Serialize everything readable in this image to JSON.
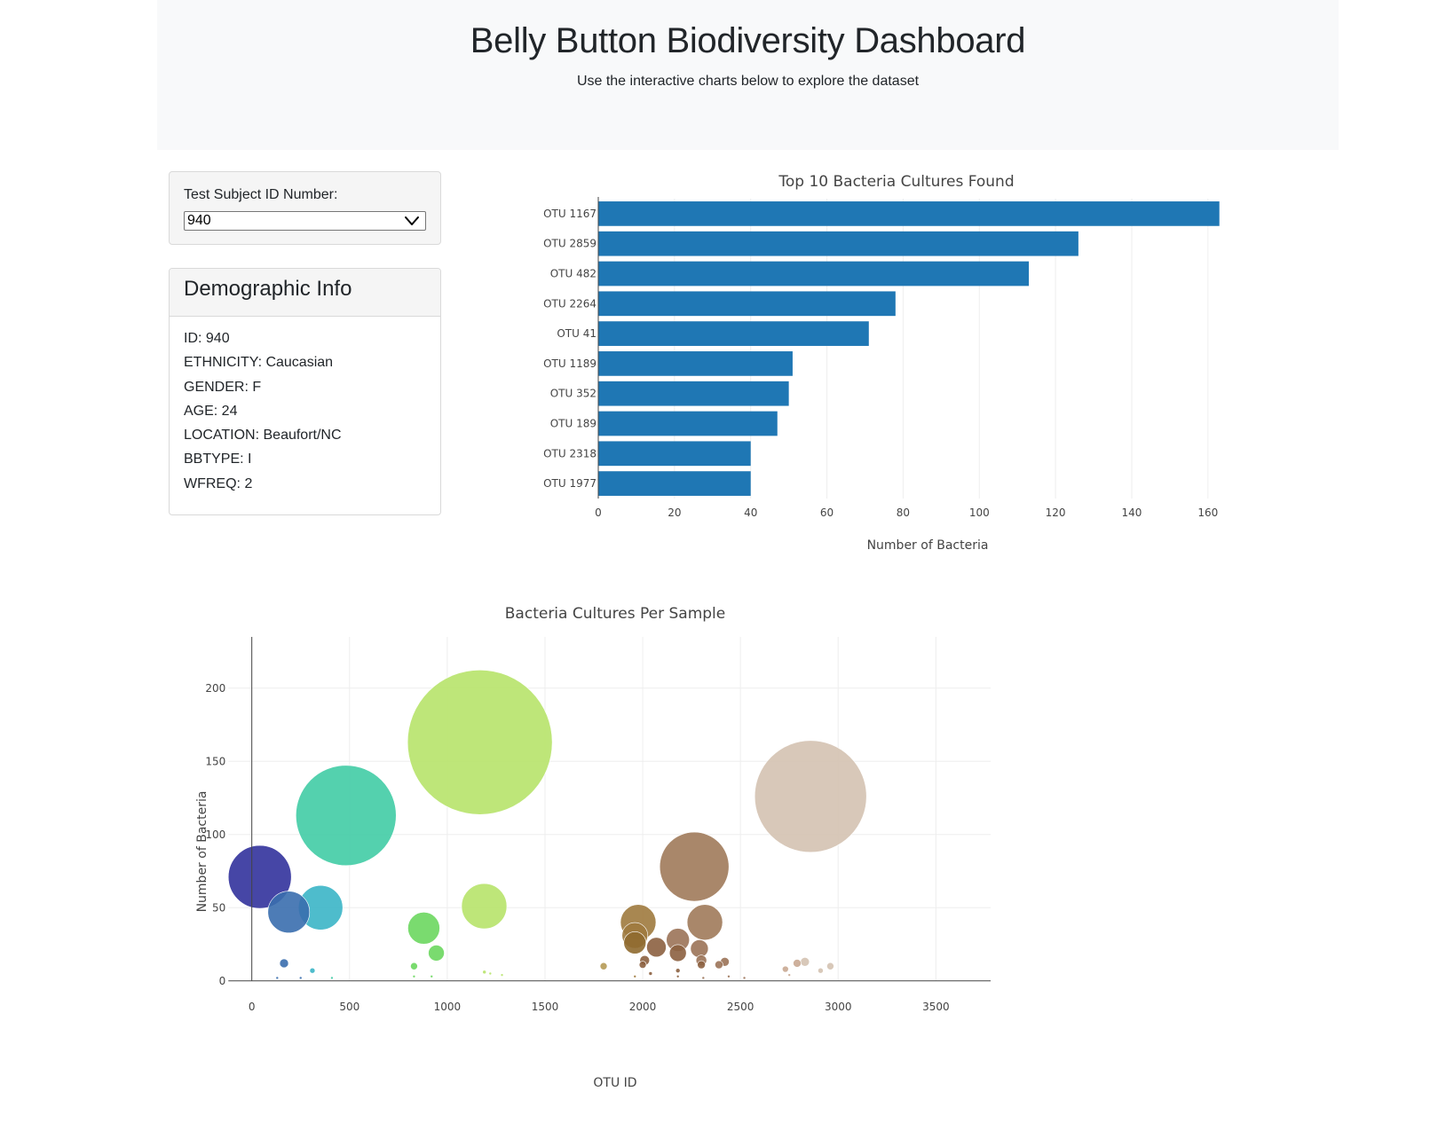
{
  "header": {
    "title": "Belly Button Biodiversity Dashboard",
    "subtitle": "Use the interactive charts below to explore the dataset"
  },
  "selector": {
    "label": "Test Subject ID Number:",
    "value": "940"
  },
  "demographics": {
    "title": "Demographic Info",
    "lines": [
      "ID: 940",
      "ETHNICITY: Caucasian",
      "GENDER: F",
      "AGE: 24",
      "LOCATION: Beaufort/NC",
      "BBTYPE: I",
      "WFREQ: 2"
    ]
  },
  "colors": {
    "bar": "#1f77b4",
    "axis": "#444444",
    "grid": "#eeeeee",
    "jumbotron_bg": "#f8f9fa"
  },
  "chart_data": [
    {
      "type": "bar",
      "orientation": "horizontal",
      "title": "Top 10 Bacteria Cultures Found",
      "xlabel": "Number of Bacteria",
      "ylabel": "",
      "categories": [
        "OTU 1167",
        "OTU 2859",
        "OTU 482",
        "OTU 2264",
        "OTU 41",
        "OTU 1189",
        "OTU 352",
        "OTU 189",
        "OTU 2318",
        "OTU 1977"
      ],
      "values": [
        163,
        126,
        113,
        78,
        71,
        51,
        50,
        47,
        40,
        40
      ],
      "xlim": [
        0,
        164
      ],
      "xticks": [
        0,
        20,
        40,
        60,
        80,
        100,
        120,
        140,
        160
      ],
      "grid": true,
      "legend": "none"
    },
    {
      "type": "scatter",
      "subtype": "bubble",
      "title": "Bacteria Cultures Per Sample",
      "xlabel": "OTU ID",
      "ylabel": "Number of Bacteria",
      "xlim": [
        -380,
        3780
      ],
      "ylim": [
        -5,
        235
      ],
      "xticks": [
        0,
        500,
        1000,
        1500,
        2000,
        2500,
        3000,
        3500
      ],
      "yticks": [
        0,
        50,
        100,
        150,
        200
      ],
      "grid": true,
      "legend": "none",
      "points": [
        {
          "x": 1167,
          "y": 163,
          "size": 163,
          "color": "#b7e36a"
        },
        {
          "x": 2859,
          "y": 126,
          "size": 126,
          "color": "#d4c2b1"
        },
        {
          "x": 482,
          "y": 113,
          "size": 113,
          "color": "#41cca5"
        },
        {
          "x": 2264,
          "y": 78,
          "size": 78,
          "color": "#a07a5a"
        },
        {
          "x": 41,
          "y": 71,
          "size": 71,
          "color": "#32329c"
        },
        {
          "x": 1189,
          "y": 51,
          "size": 51,
          "color": "#b7e36a"
        },
        {
          "x": 352,
          "y": 50,
          "size": 50,
          "color": "#3bb5c6"
        },
        {
          "x": 189,
          "y": 47,
          "size": 47,
          "color": "#3a6eae"
        },
        {
          "x": 2318,
          "y": 40,
          "size": 40,
          "color": "#a07a5a"
        },
        {
          "x": 1977,
          "y": 40,
          "size": 40,
          "color": "#9e7a3e"
        },
        {
          "x": 880,
          "y": 36,
          "size": 36,
          "color": "#6bd75f"
        },
        {
          "x": 1960,
          "y": 31,
          "size": 29,
          "color": "#9e7a3e"
        },
        {
          "x": 2180,
          "y": 28,
          "size": 26,
          "color": "#9b7358"
        },
        {
          "x": 1960,
          "y": 26,
          "size": 25,
          "color": "#8f6a2f"
        },
        {
          "x": 2070,
          "y": 23,
          "size": 22,
          "color": "#8c6040"
        },
        {
          "x": 2290,
          "y": 22,
          "size": 20,
          "color": "#9b7358"
        },
        {
          "x": 2180,
          "y": 19,
          "size": 19,
          "color": "#8c6040"
        },
        {
          "x": 944,
          "y": 19,
          "size": 18,
          "color": "#6bd75f"
        },
        {
          "x": 2300,
          "y": 14,
          "size": 12,
          "color": "#9b7358"
        },
        {
          "x": 2010,
          "y": 14,
          "size": 11,
          "color": "#8c6040"
        },
        {
          "x": 2420,
          "y": 13,
          "size": 10,
          "color": "#9b7358"
        },
        {
          "x": 2830,
          "y": 13,
          "size": 10,
          "color": "#d4c2b1"
        },
        {
          "x": 2300,
          "y": 11,
          "size": 9,
          "color": "#8c6040"
        },
        {
          "x": 2790,
          "y": 12,
          "size": 9,
          "color": "#c9a992"
        },
        {
          "x": 2390,
          "y": 11,
          "size": 9,
          "color": "#9b7358"
        },
        {
          "x": 1800,
          "y": 10,
          "size": 8,
          "color": "#b59a55"
        },
        {
          "x": 2000,
          "y": 11,
          "size": 8,
          "color": "#8c6040"
        },
        {
          "x": 2960,
          "y": 10,
          "size": 8,
          "color": "#d4c2b1"
        },
        {
          "x": 165,
          "y": 12,
          "size": 10,
          "color": "#3a6eae"
        },
        {
          "x": 830,
          "y": 10,
          "size": 8,
          "color": "#6bd75f"
        },
        {
          "x": 2730,
          "y": 8,
          "size": 7,
          "color": "#c9a992"
        },
        {
          "x": 2910,
          "y": 7,
          "size": 6,
          "color": "#d4c2b1"
        },
        {
          "x": 310,
          "y": 7,
          "size": 6,
          "color": "#3bb5c6"
        },
        {
          "x": 2180,
          "y": 7,
          "size": 5,
          "color": "#8c6040"
        },
        {
          "x": 2040,
          "y": 5,
          "size": 4,
          "color": "#8c6040"
        },
        {
          "x": 2750,
          "y": 4,
          "size": 3,
          "color": "#c9a992"
        },
        {
          "x": 1190,
          "y": 6,
          "size": 4,
          "color": "#b7e36a"
        },
        {
          "x": 1220,
          "y": 5,
          "size": 3,
          "color": "#b7e36a"
        },
        {
          "x": 1280,
          "y": 4,
          "size": 3,
          "color": "#b7e36a"
        },
        {
          "x": 2440,
          "y": 3,
          "size": 3,
          "color": "#9b7358"
        },
        {
          "x": 1960,
          "y": 3,
          "size": 3,
          "color": "#9e7a3e"
        },
        {
          "x": 2180,
          "y": 3,
          "size": 3,
          "color": "#8c6040"
        },
        {
          "x": 2310,
          "y": 2,
          "size": 3,
          "color": "#9b7358"
        },
        {
          "x": 830,
          "y": 3,
          "size": 3,
          "color": "#6bd75f"
        },
        {
          "x": 920,
          "y": 3,
          "size": 3,
          "color": "#6bd75f"
        },
        {
          "x": 130,
          "y": 2,
          "size": 3,
          "color": "#3a6eae"
        },
        {
          "x": 250,
          "y": 2,
          "size": 3,
          "color": "#3a6eae"
        },
        {
          "x": 410,
          "y": 2,
          "size": 3,
          "color": "#41cca5"
        },
        {
          "x": 2520,
          "y": 2,
          "size": 3,
          "color": "#9b7358"
        }
      ]
    }
  ]
}
